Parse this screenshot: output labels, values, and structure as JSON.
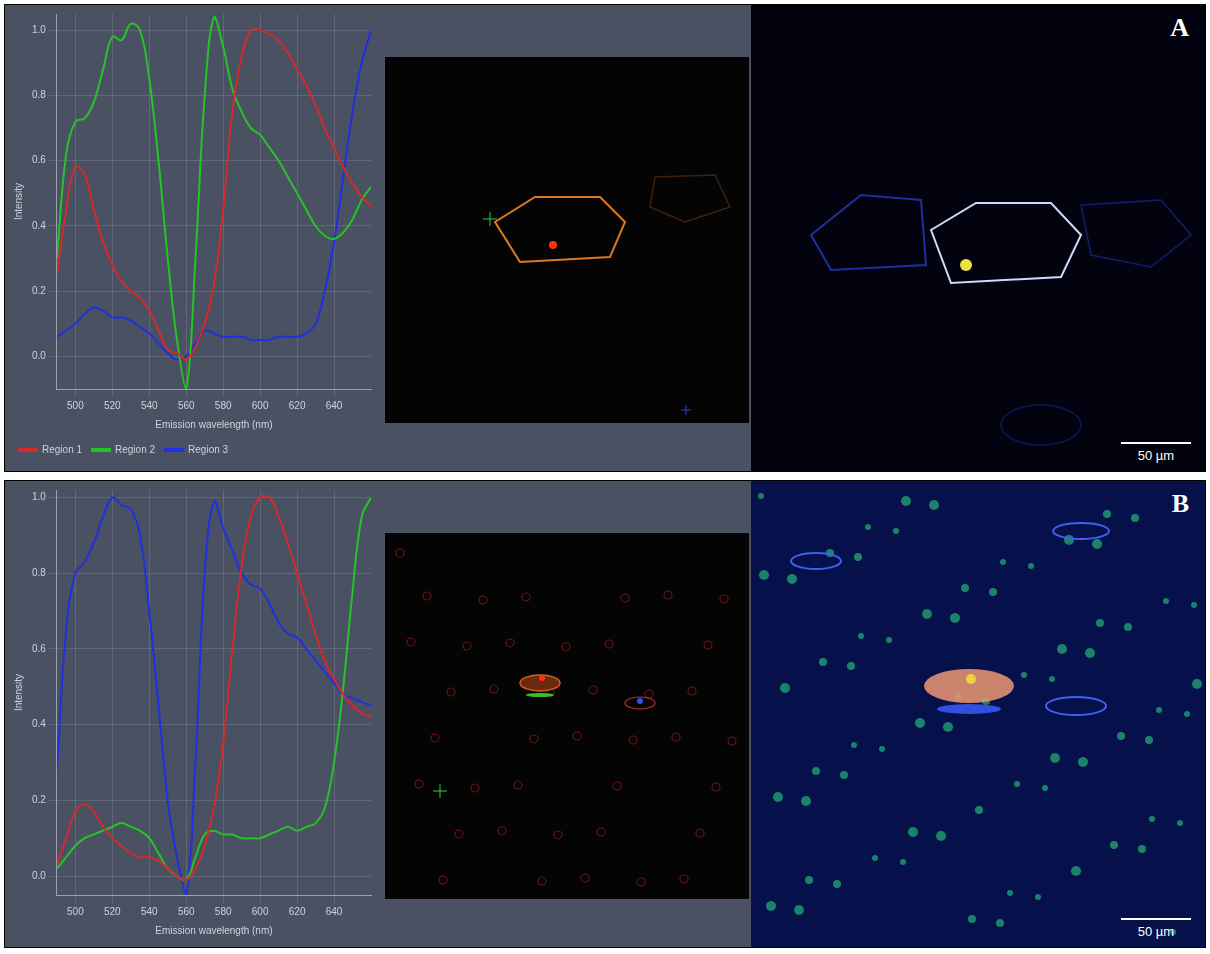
{
  "chart_data": [
    {
      "type": "line",
      "y_label": "Intensity",
      "x_label": "Emission wavelength (nm)",
      "x": [
        490,
        495,
        500,
        505,
        510,
        515,
        520,
        525,
        530,
        535,
        540,
        545,
        550,
        555,
        560,
        565,
        570,
        575,
        580,
        585,
        590,
        595,
        600,
        605,
        610,
        615,
        620,
        625,
        630,
        635,
        640,
        645,
        650,
        655,
        660
      ],
      "series": [
        {
          "name": "Region 1",
          "color": "#d42a2a",
          "values": [
            0.25,
            0.45,
            0.58,
            0.56,
            0.45,
            0.35,
            0.28,
            0.23,
            0.2,
            0.18,
            0.14,
            0.08,
            0.02,
            0.01,
            -0.01,
            0.03,
            0.1,
            0.22,
            0.45,
            0.75,
            0.92,
            1.0,
            1.0,
            0.99,
            0.97,
            0.93,
            0.88,
            0.83,
            0.77,
            0.7,
            0.64,
            0.58,
            0.53,
            0.49,
            0.46
          ]
        },
        {
          "name": "Region 2",
          "color": "#24c424",
          "values": [
            0.3,
            0.62,
            0.72,
            0.73,
            0.78,
            0.88,
            0.98,
            0.97,
            1.02,
            1.0,
            0.85,
            0.6,
            0.3,
            0.05,
            -0.1,
            0.3,
            0.8,
            1.04,
            0.95,
            0.82,
            0.75,
            0.7,
            0.68,
            0.64,
            0.6,
            0.55,
            0.5,
            0.45,
            0.4,
            0.37,
            0.36,
            0.38,
            0.42,
            0.48,
            0.52
          ]
        },
        {
          "name": "Region 3",
          "color": "#2030e0",
          "values": [
            0.06,
            0.08,
            0.1,
            0.13,
            0.15,
            0.14,
            0.12,
            0.12,
            0.11,
            0.09,
            0.07,
            0.04,
            0.01,
            -0.01,
            0.0,
            0.04,
            0.08,
            0.07,
            0.06,
            0.06,
            0.06,
            0.05,
            0.05,
            0.05,
            0.06,
            0.06,
            0.06,
            0.07,
            0.1,
            0.2,
            0.35,
            0.55,
            0.75,
            0.9,
            1.0
          ]
        }
      ],
      "xlim": [
        490,
        660
      ],
      "xticks": [
        500,
        520,
        540,
        560,
        580,
        600,
        620,
        640
      ],
      "ylim": [
        -0.1,
        1.05
      ],
      "yticks": [
        {
          "value": 0,
          "label": "0.0"
        },
        {
          "value": 0.2,
          "label": "0.2"
        },
        {
          "value": 0.4,
          "label": "0.4"
        },
        {
          "value": 0.6,
          "label": "0.6"
        },
        {
          "value": 0.8,
          "label": "0.8"
        },
        {
          "value": 1,
          "label": "1.0"
        }
      ],
      "grid": true,
      "legend": "bottom"
    },
    {
      "type": "line",
      "y_label": "Intensity",
      "x_label": "Emission wavelength (nm)",
      "x": [
        490,
        495,
        500,
        505,
        510,
        515,
        520,
        525,
        530,
        535,
        540,
        545,
        550,
        555,
        560,
        565,
        570,
        575,
        580,
        585,
        590,
        595,
        600,
        605,
        610,
        615,
        620,
        625,
        630,
        635,
        640,
        645,
        650,
        655,
        660
      ],
      "series": [
        {
          "color": "#d42a2a",
          "values": [
            0.03,
            0.1,
            0.17,
            0.19,
            0.17,
            0.13,
            0.1,
            0.08,
            0.06,
            0.05,
            0.05,
            0.04,
            0.02,
            0.0,
            -0.01,
            0.02,
            0.08,
            0.18,
            0.35,
            0.6,
            0.82,
            0.95,
            1.0,
            1.0,
            0.95,
            0.88,
            0.8,
            0.72,
            0.64,
            0.57,
            0.52,
            0.48,
            0.45,
            0.43,
            0.42
          ]
        },
        {
          "color": "#24c424",
          "values": [
            0.02,
            0.05,
            0.08,
            0.1,
            0.11,
            0.12,
            0.13,
            0.14,
            0.13,
            0.12,
            0.1,
            0.06,
            0.02,
            0.0,
            -0.01,
            0.05,
            0.11,
            0.12,
            0.11,
            0.11,
            0.1,
            0.1,
            0.1,
            0.11,
            0.12,
            0.13,
            0.12,
            0.13,
            0.14,
            0.18,
            0.3,
            0.5,
            0.75,
            0.95,
            1.0
          ]
        },
        {
          "color": "#2030e0",
          "values": [
            0.28,
            0.65,
            0.8,
            0.83,
            0.88,
            0.95,
            1.0,
            0.98,
            0.97,
            0.9,
            0.7,
            0.45,
            0.2,
            0.05,
            -0.05,
            0.3,
            0.8,
            0.99,
            0.92,
            0.86,
            0.8,
            0.77,
            0.76,
            0.72,
            0.67,
            0.64,
            0.63,
            0.6,
            0.57,
            0.54,
            0.51,
            0.48,
            0.47,
            0.46,
            0.45
          ]
        }
      ],
      "xlim": [
        490,
        660
      ],
      "xticks": [
        500,
        520,
        540,
        560,
        580,
        600,
        620,
        640
      ],
      "ylim": [
        -0.05,
        1.02
      ],
      "yticks": [
        {
          "value": 0,
          "label": "0.0"
        },
        {
          "value": 0.2,
          "label": "0.2"
        },
        {
          "value": 0.4,
          "label": "0.4"
        },
        {
          "value": 0.6,
          "label": "0.6"
        },
        {
          "value": 0.8,
          "label": "0.8"
        },
        {
          "value": 1,
          "label": "1.0"
        }
      ],
      "grid": true
    }
  ],
  "panels": [
    {
      "label": "A",
      "scale_bar": "50 µm"
    },
    {
      "label": "B",
      "scale_bar": "50 µm"
    }
  ]
}
